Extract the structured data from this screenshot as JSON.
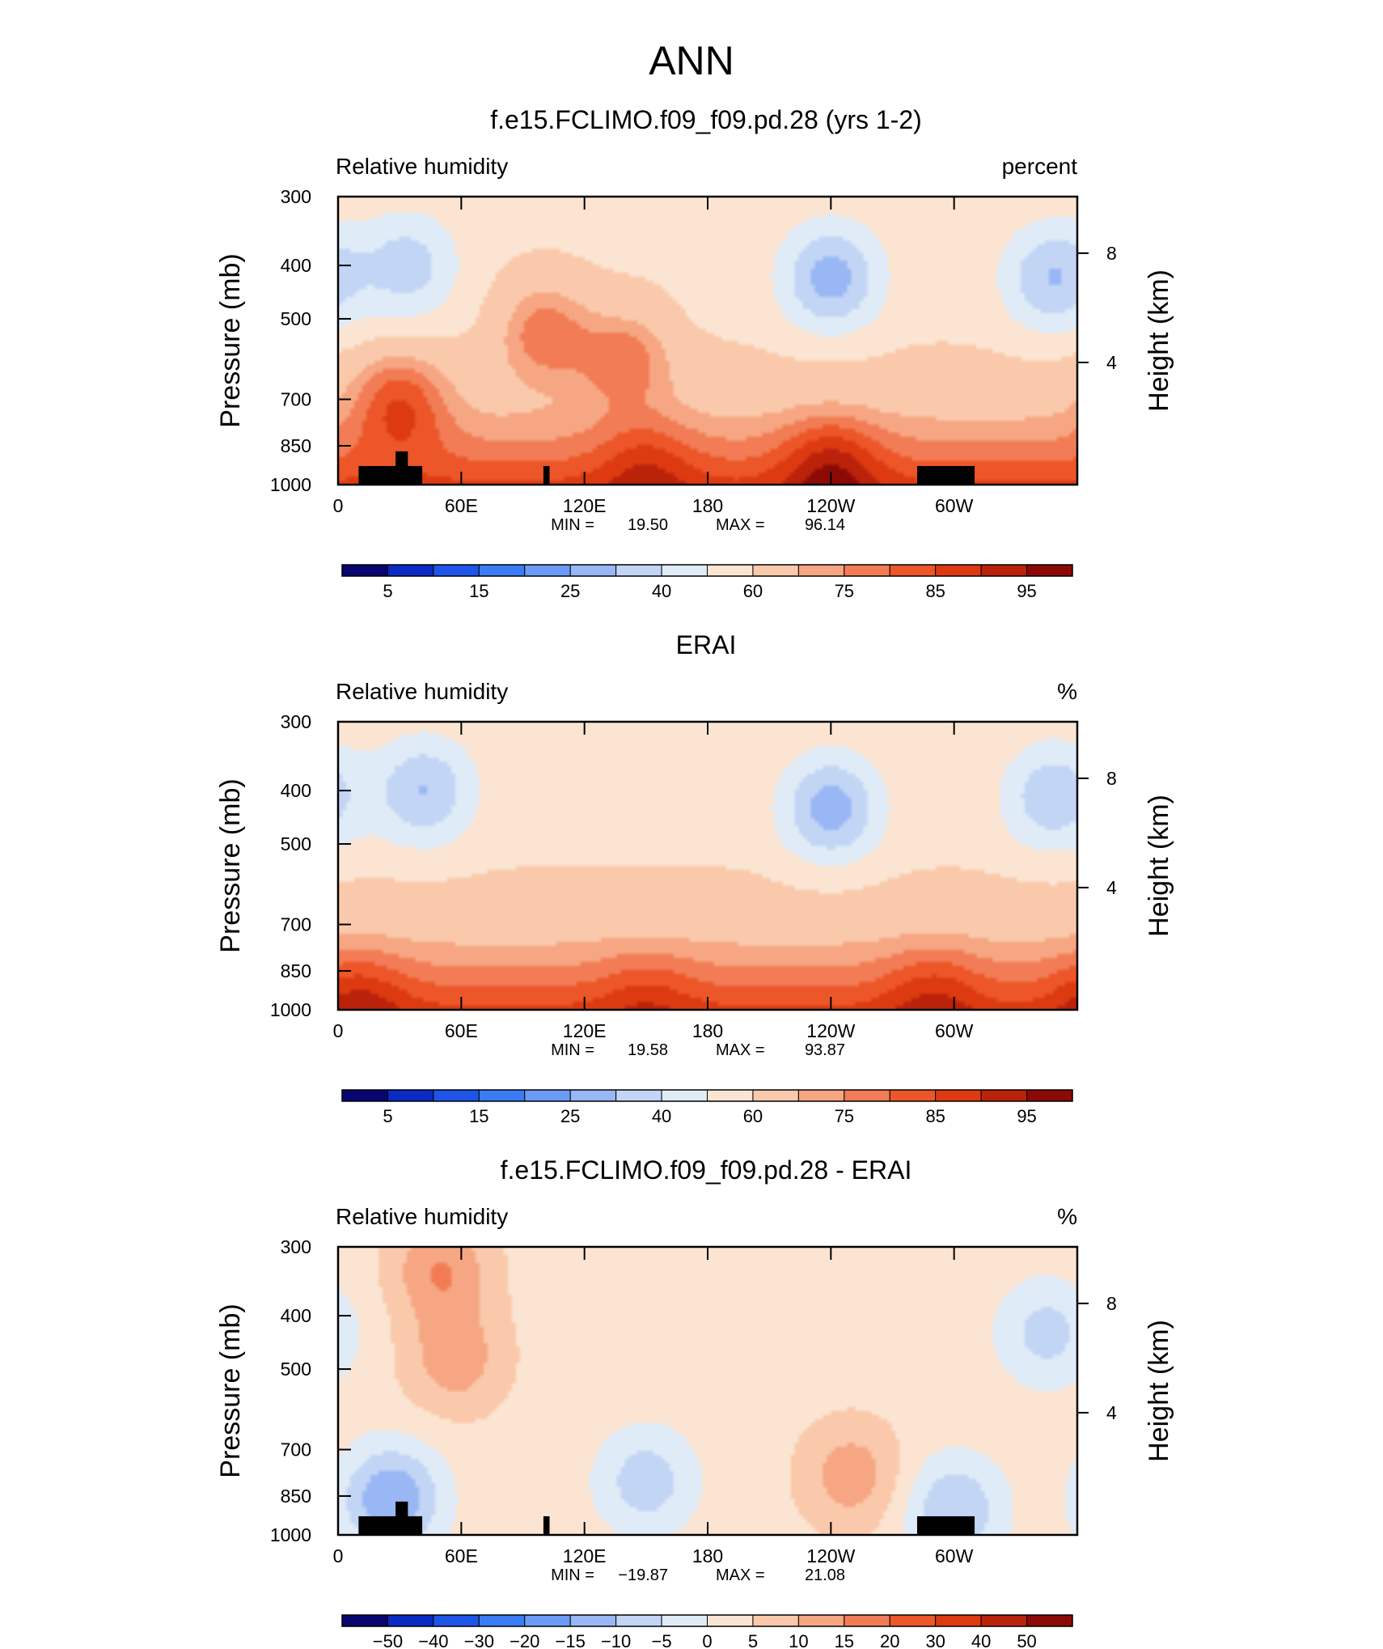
{
  "figure": {
    "title": "ANN"
  },
  "colorbar_colors_abs": [
    "#08066e",
    "#0a2ac4",
    "#1e55e8",
    "#3a7cf6",
    "#6b9bf6",
    "#98b7f4",
    "#c2d5f5",
    "#e0ebf8",
    "#fbe5d2",
    "#fac9ab",
    "#f6a682",
    "#f27c55",
    "#ec5628",
    "#dd3a12",
    "#ba220a",
    "#8c0a05"
  ],
  "colorbar_colors_diff": [
    "#08066e",
    "#0a2ac4",
    "#1e55e8",
    "#3a7cf6",
    "#6b9bf6",
    "#98b7f4",
    "#c2d5f5",
    "#e0ebf8",
    "#fbe5d2",
    "#fac9ab",
    "#f6a682",
    "#f27c55",
    "#ec5628",
    "#dd3a12",
    "#ba220a",
    "#8c0a05"
  ],
  "panels": [
    {
      "title": "f.e15.FCLIMO.f09_f09.pd.28 (yrs 1-2)",
      "left_label": "Relative humidity",
      "right_label": "percent",
      "y_axis_title": "Pressure (mb)",
      "y_right_title": "Height (km)",
      "y_ticks": [
        "300",
        "400",
        "500",
        "700",
        "850",
        "1000"
      ],
      "y_right_ticks": [
        "8",
        "4"
      ],
      "x_ticks": [
        "0",
        "60E",
        "120E",
        "180",
        "120W",
        "60W"
      ],
      "min_label": "MIN =",
      "min_value": "19.50",
      "max_label": "MAX =",
      "max_value": "96.14",
      "colorbar_labels": [
        "5",
        "15",
        "25",
        "40",
        "60",
        "75",
        "85",
        "95"
      ]
    },
    {
      "title": "ERAI",
      "left_label": "Relative humidity",
      "right_label": "%",
      "y_axis_title": "Pressure (mb)",
      "y_right_title": "Height (km)",
      "y_ticks": [
        "300",
        "400",
        "500",
        "700",
        "850",
        "1000"
      ],
      "y_right_ticks": [
        "8",
        "4"
      ],
      "x_ticks": [
        "0",
        "60E",
        "120E",
        "180",
        "120W",
        "60W"
      ],
      "min_label": "MIN =",
      "min_value": "19.58",
      "max_label": "MAX =",
      "max_value": "93.87",
      "colorbar_labels": [
        "5",
        "15",
        "25",
        "40",
        "60",
        "75",
        "85",
        "95"
      ]
    },
    {
      "title": "f.e15.FCLIMO.f09_f09.pd.28 - ERAI",
      "left_label": "Relative humidity",
      "right_label": "%",
      "y_axis_title": "Pressure (mb)",
      "y_right_title": "Height (km)",
      "y_ticks": [
        "300",
        "400",
        "500",
        "700",
        "850",
        "1000"
      ],
      "y_right_ticks": [
        "8",
        "4"
      ],
      "x_ticks": [
        "0",
        "60E",
        "120E",
        "180",
        "120W",
        "60W"
      ],
      "min_label": "MIN =",
      "min_value": "−19.87",
      "max_label": "MAX =",
      "max_value": "21.08",
      "colorbar_labels": [
        "−50",
        "−40",
        "−30",
        "−20",
        "−15",
        "−10",
        "−5",
        "0",
        "5",
        "10",
        "15",
        "20",
        "30",
        "40",
        "50"
      ]
    }
  ],
  "chart_data": [
    {
      "type": "heatmap",
      "title": "f.e15.FCLIMO.f09_f09.pd.28 (yrs 1-2)",
      "subtitle": "Relative humidity",
      "units": "percent",
      "xlabel": "",
      "ylabel": "Pressure (mb)",
      "ylabel_right": "Height (km)",
      "x_tick_labels": [
        "0",
        "60E",
        "120E",
        "180",
        "120W",
        "60W"
      ],
      "x_tick_degrees": [
        0,
        60,
        120,
        180,
        240,
        300
      ],
      "xlim": [
        0,
        360
      ],
      "y_ticks": [
        300,
        400,
        500,
        700,
        850,
        1000
      ],
      "ylim": [
        300,
        1000
      ],
      "y_scale": "log",
      "y_right_ticks_km": [
        8,
        4
      ],
      "min": 19.5,
      "max": 96.14,
      "levels": [
        5,
        10,
        15,
        20,
        25,
        30,
        40,
        50,
        60,
        70,
        75,
        80,
        85,
        90,
        95
      ],
      "colorbar_labels": [
        5,
        15,
        25,
        40,
        60,
        75,
        85,
        95
      ],
      "features": [
        {
          "lon": 34,
          "p": 400,
          "value": 35
        },
        {
          "lon": 240,
          "p": 420,
          "value": 25
        },
        {
          "lon": 348,
          "p": 420,
          "value": 30
        },
        {
          "lon": 100,
          "p": 520,
          "value": 78
        },
        {
          "lon": 140,
          "p": 580,
          "value": 78
        },
        {
          "lon": 30,
          "p": 700,
          "value": 85
        },
        {
          "lon": 240,
          "p": 920,
          "value": 95
        },
        {
          "lon": 150,
          "p": 920,
          "value": 90
        }
      ]
    },
    {
      "type": "heatmap",
      "title": "ERAI",
      "subtitle": "Relative humidity",
      "units": "%",
      "xlabel": "",
      "ylabel": "Pressure (mb)",
      "ylabel_right": "Height (km)",
      "x_tick_labels": [
        "0",
        "60E",
        "120E",
        "180",
        "120W",
        "60W"
      ],
      "x_tick_degrees": [
        0,
        60,
        120,
        180,
        240,
        300
      ],
      "xlim": [
        0,
        360
      ],
      "y_ticks": [
        300,
        400,
        500,
        700,
        850,
        1000
      ],
      "ylim": [
        300,
        1000
      ],
      "y_scale": "log",
      "y_right_ticks_km": [
        8,
        4
      ],
      "min": 19.58,
      "max": 93.87,
      "levels": [
        5,
        10,
        15,
        20,
        25,
        30,
        40,
        50,
        60,
        70,
        75,
        80,
        85,
        90,
        95
      ],
      "colorbar_labels": [
        5,
        15,
        25,
        40,
        60,
        75,
        85,
        95
      ],
      "features": [
        {
          "lon": 42,
          "p": 400,
          "value": 30
        },
        {
          "lon": 240,
          "p": 430,
          "value": 25
        },
        {
          "lon": 348,
          "p": 410,
          "value": 32
        },
        {
          "lon": 10,
          "p": 950,
          "value": 92
        },
        {
          "lon": 150,
          "p": 940,
          "value": 88
        },
        {
          "lon": 290,
          "p": 930,
          "value": 90
        }
      ]
    },
    {
      "type": "heatmap",
      "title": "f.e15.FCLIMO.f09_f09.pd.28 - ERAI",
      "subtitle": "Relative humidity",
      "units": "%",
      "xlabel": "",
      "ylabel": "Pressure (mb)",
      "ylabel_right": "Height (km)",
      "x_tick_labels": [
        "0",
        "60E",
        "120E",
        "180",
        "120W",
        "60W"
      ],
      "x_tick_degrees": [
        0,
        60,
        120,
        180,
        240,
        300
      ],
      "xlim": [
        0,
        360
      ],
      "y_ticks": [
        300,
        400,
        500,
        700,
        850,
        1000
      ],
      "ylim": [
        300,
        1000
      ],
      "y_scale": "log",
      "y_right_ticks_km": [
        8,
        4
      ],
      "min": -19.87,
      "max": 21.08,
      "levels": [
        -50,
        -40,
        -30,
        -20,
        -15,
        -10,
        -5,
        0,
        5,
        10,
        15,
        20,
        30,
        40,
        50
      ],
      "colorbar_labels": [
        -50,
        -40,
        -30,
        -20,
        -15,
        -10,
        -5,
        0,
        5,
        10,
        15,
        20,
        30,
        40,
        50
      ],
      "features": [
        {
          "lon": 50,
          "p": 330,
          "value": 15
        },
        {
          "lon": 57,
          "p": 480,
          "value": 13
        },
        {
          "lon": 250,
          "p": 780,
          "value": 13
        },
        {
          "lon": 26,
          "p": 860,
          "value": -15
        },
        {
          "lon": 150,
          "p": 800,
          "value": -8
        },
        {
          "lon": 300,
          "p": 900,
          "value": -10
        },
        {
          "lon": 345,
          "p": 430,
          "value": -7
        }
      ]
    }
  ]
}
